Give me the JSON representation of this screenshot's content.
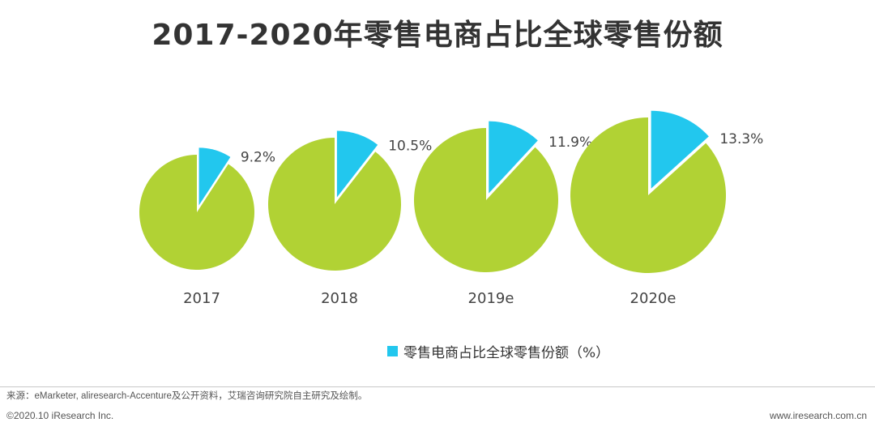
{
  "title": "2017-2020年零售电商占比全球零售份额",
  "chart_data": {
    "type": "pie",
    "title": "2017-2020年零售电商占比全球零售份额",
    "series_name": "零售电商占比全球零售份额（%）",
    "categories": [
      "2017",
      "2018",
      "2019e",
      "2020e"
    ],
    "values": [
      9.2,
      10.5,
      11.9,
      13.3
    ],
    "value_labels": [
      "9.2%",
      "10.5%",
      "11.9%",
      "13.3%"
    ],
    "legend_position": "bottom-center",
    "colors": {
      "ecommerce": "#22c7ee",
      "other": "#b1d234"
    }
  },
  "legend": {
    "label": "零售电商占比全球零售份额（%）"
  },
  "source": "来源：eMarketer, aliresearch-Accenture及公开资料，艾瑞咨询研究院自主研究及绘制。",
  "footer": {
    "copyright": "©2020.10 iResearch Inc.",
    "website": "www.iresearch.com.cn"
  }
}
